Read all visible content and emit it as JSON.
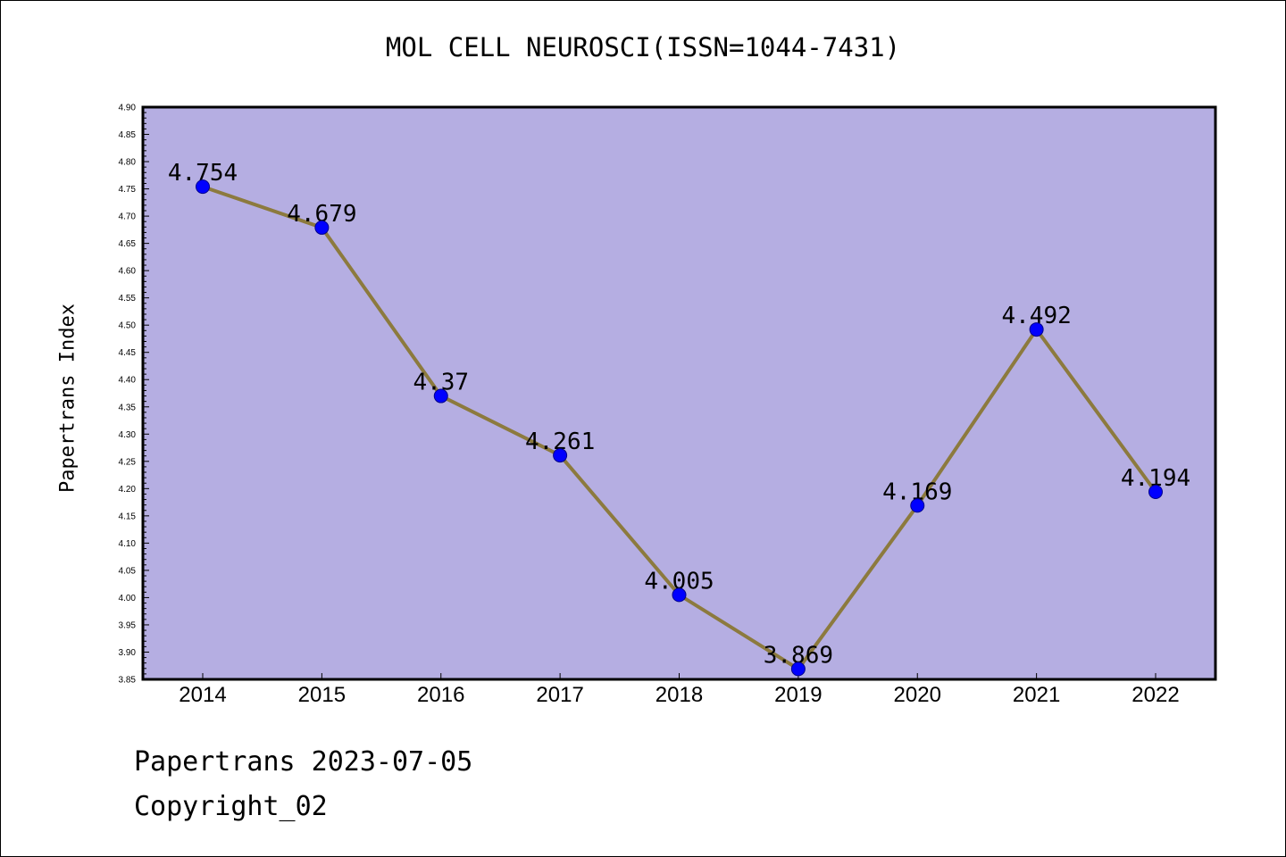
{
  "chart_data": {
    "type": "line",
    "title": "MOL CELL NEUROSCI(ISSN=1044-7431)",
    "xlabel": "",
    "ylabel": "Papertrans Index",
    "categories": [
      "2014",
      "2015",
      "2016",
      "2017",
      "2018",
      "2019",
      "2020",
      "2021",
      "2022"
    ],
    "series": [
      {
        "values": [
          4.754,
          4.679,
          4.37,
          4.261,
          4.005,
          3.869,
          4.169,
          4.492,
          4.194
        ],
        "labels": [
          "4.754",
          "4.679",
          "4.37",
          "4.261",
          "4.005",
          "3.869",
          "4.169",
          "4.492",
          "4.194"
        ]
      }
    ],
    "ylim": [
      3.85,
      4.9
    ],
    "ystep": 0.05,
    "grid": false,
    "legend": "none",
    "colors": {
      "plot_background": "#b5aee2",
      "line": "#8c7a3e",
      "marker": "#0000ff"
    }
  },
  "footer": {
    "line1": "Papertrans 2023-07-05",
    "line2": "Copyright_02"
  }
}
